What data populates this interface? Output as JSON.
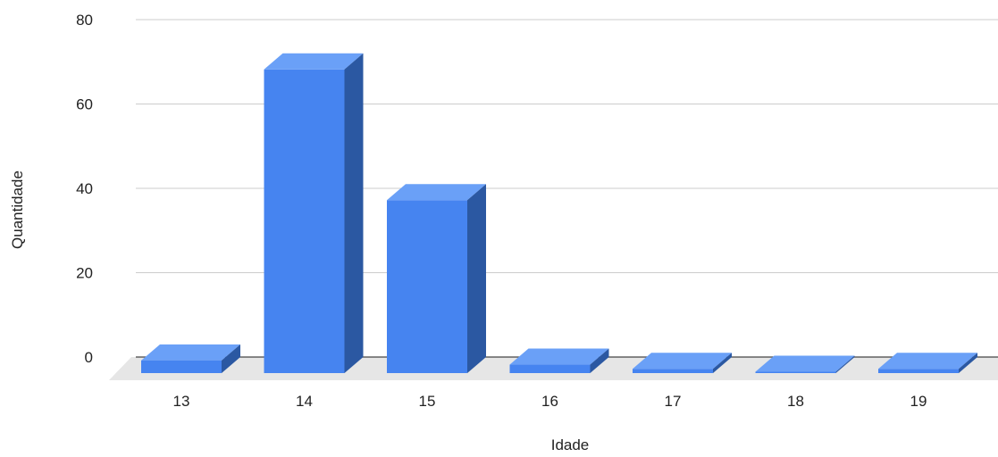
{
  "chart_data": {
    "type": "bar",
    "style": "3d-column",
    "title": "",
    "xlabel": "Idade",
    "ylabel": "Quantidade",
    "categories": [
      "13",
      "14",
      "15",
      "16",
      "17",
      "18",
      "19"
    ],
    "values": [
      3,
      72,
      41,
      2,
      1,
      0,
      1
    ],
    "ylim": [
      0,
      80
    ],
    "yticks": [
      "0",
      "20",
      "40",
      "60",
      "80"
    ],
    "grid": true,
    "legend": "none",
    "colors": {
      "front": "#4684f0",
      "top": "#6aa0f7",
      "side": "#2b58a2",
      "floor": "#e6e6e6",
      "grid": "#cccccc"
    }
  }
}
